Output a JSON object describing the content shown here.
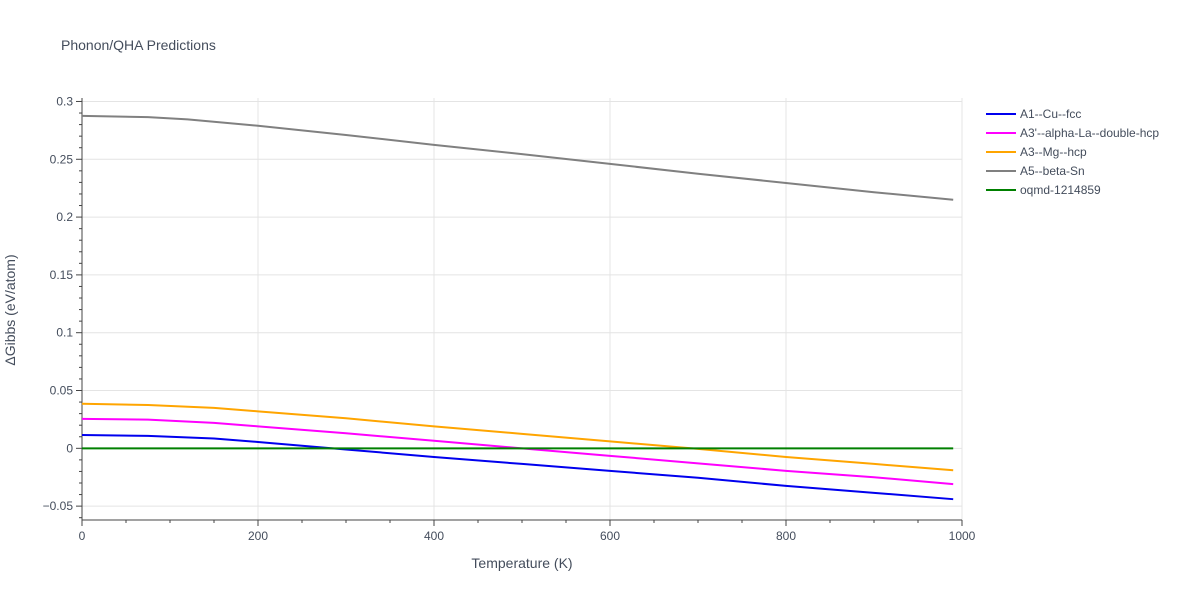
{
  "chart_data": {
    "type": "line",
    "title": "Phonon/QHA Predictions",
    "xlabel": "Temperature (K)",
    "ylabel": "ΔGibbs (eV/atom)",
    "xlim": [
      0,
      1000
    ],
    "ylim": [
      -0.062,
      0.303
    ],
    "x_ticks": [
      0,
      200,
      400,
      600,
      800,
      1000
    ],
    "x_tick_labels": [
      "0",
      "200",
      "400",
      "600",
      "800",
      "1000"
    ],
    "y_ticks": [
      -0.05,
      0,
      0.05,
      0.1,
      0.15,
      0.2,
      0.25,
      0.3
    ],
    "y_tick_labels": [
      "−0.05",
      "0",
      "0.05",
      "0.1",
      "0.15",
      "0.2",
      "0.25",
      "0.3"
    ],
    "grid": true,
    "legend_position": "top-right, outside plot",
    "series": [
      {
        "name": "A1--Cu--fcc",
        "color": "#0000ee",
        "x": [
          0,
          75,
          150,
          200,
          300,
          400,
          500,
          600,
          700,
          800,
          900,
          990
        ],
        "y": [
          0.0115,
          0.0108,
          0.0085,
          0.0055,
          -0.001,
          -0.0075,
          -0.0135,
          -0.0195,
          -0.0255,
          -0.0325,
          -0.0385,
          -0.044
        ]
      },
      {
        "name": "A3'--alpha-La--double-hcp",
        "color": "#ff00ff",
        "x": [
          0,
          75,
          150,
          200,
          300,
          400,
          500,
          600,
          700,
          800,
          900,
          990
        ],
        "y": [
          0.0255,
          0.0248,
          0.022,
          0.019,
          0.013,
          0.0065,
          0.0,
          -0.0065,
          -0.013,
          -0.0195,
          -0.025,
          -0.031
        ]
      },
      {
        "name": "A3--Mg--hcp",
        "color": "#ffa500",
        "x": [
          0,
          75,
          150,
          200,
          300,
          400,
          500,
          600,
          700,
          800,
          900,
          990
        ],
        "y": [
          0.0385,
          0.0375,
          0.035,
          0.032,
          0.026,
          0.019,
          0.0125,
          0.006,
          -0.0005,
          -0.0075,
          -0.0135,
          -0.019
        ]
      },
      {
        "name": "A5--beta-Sn",
        "color": "#808080",
        "x": [
          0,
          75,
          120,
          200,
          300,
          400,
          500,
          600,
          700,
          800,
          900,
          990
        ],
        "y": [
          0.2875,
          0.2865,
          0.2845,
          0.279,
          0.271,
          0.2625,
          0.2545,
          0.246,
          0.2375,
          0.2295,
          0.2215,
          0.215
        ]
      },
      {
        "name": "oqmd-1214859",
        "color": "#008000",
        "x": [
          0,
          990
        ],
        "y": [
          0,
          0
        ]
      }
    ]
  }
}
